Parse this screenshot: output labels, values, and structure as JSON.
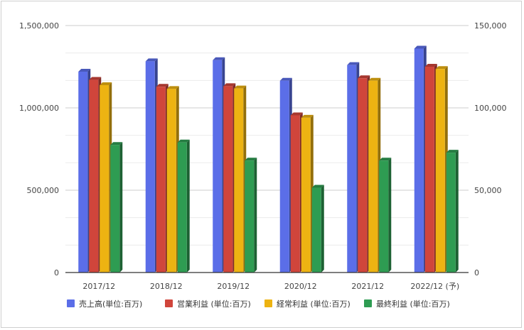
{
  "chart_data": {
    "type": "bar",
    "categories": [
      "2017/12",
      "2018/12",
      "2019/12",
      "2020/12",
      "2021/12",
      "2022/12 (予)"
    ],
    "series": [
      {
        "name": "売上高(単位:百万)",
        "color": "#5b6ee8",
        "axis": "left",
        "values": [
          1220000,
          1283000,
          1290000,
          1165000,
          1260000,
          1360000
        ]
      },
      {
        "name": "営業利益 (単位:百万)",
        "color": "#d0453b",
        "axis": "right",
        "values": [
          117000,
          112800,
          113200,
          95500,
          118000,
          125000
        ]
      },
      {
        "name": "経常利益 (単位:百万)",
        "color": "#edb312",
        "axis": "right",
        "values": [
          113800,
          111500,
          111800,
          94000,
          116500,
          123600
        ]
      },
      {
        "name": "最終利益 (単位:百万)",
        "color": "#2e9c52",
        "axis": "right",
        "values": [
          77500,
          79000,
          68000,
          51500,
          68000,
          72800
        ]
      }
    ],
    "y_left": {
      "min": 0,
      "max": 1500000,
      "ticks": [
        0,
        500000,
        1000000,
        1500000
      ],
      "tick_labels": [
        "0",
        "500,000",
        "1,000,000",
        "1,500,000"
      ]
    },
    "y_right": {
      "min": 0,
      "max": 150000,
      "ticks": [
        0,
        50000,
        100000,
        150000
      ],
      "tick_labels": [
        "0",
        "50,000",
        "100,000",
        "150,000"
      ]
    },
    "grid": true,
    "legend_position": "bottom",
    "title": ""
  }
}
